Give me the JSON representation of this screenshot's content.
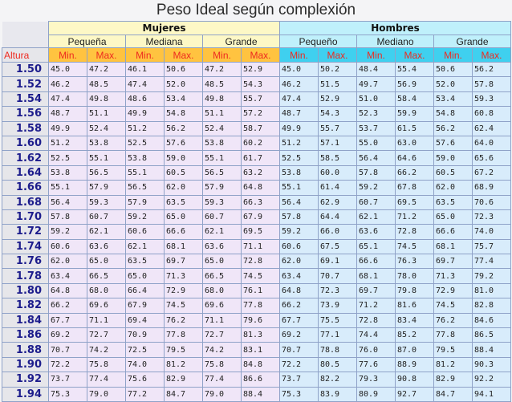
{
  "title": "Peso Ideal según complexión",
  "groups": [
    "Mujeres",
    "Hombres"
  ],
  "sizes": {
    "women": [
      "Pequeña",
      "Mediana",
      "Grande"
    ],
    "men": [
      "Pequeño",
      "Mediano",
      "Grande"
    ]
  },
  "units": {
    "altura": "Altura",
    "min": "Min.",
    "max": "Max."
  },
  "rows": [
    {
      "h": "1.50",
      "v": [
        "45.0",
        "47.2",
        "46.1",
        "50.6",
        "47.2",
        "52.9",
        "45.0",
        "50.2",
        "48.4",
        "55.4",
        "50.6",
        "56.2"
      ]
    },
    {
      "h": "1.52",
      "v": [
        "46.2",
        "48.5",
        "47.4",
        "52.0",
        "48.5",
        "54.3",
        "46.2",
        "51.5",
        "49.7",
        "56.9",
        "52.0",
        "57.8"
      ]
    },
    {
      "h": "1.54",
      "v": [
        "47.4",
        "49.8",
        "48.6",
        "53.4",
        "49.8",
        "55.7",
        "47.4",
        "52.9",
        "51.0",
        "58.4",
        "53.4",
        "59.3"
      ]
    },
    {
      "h": "1.56",
      "v": [
        "48.7",
        "51.1",
        "49.9",
        "54.8",
        "51.1",
        "57.2",
        "48.7",
        "54.3",
        "52.3",
        "59.9",
        "54.8",
        "60.8"
      ]
    },
    {
      "h": "1.58",
      "v": [
        "49.9",
        "52.4",
        "51.2",
        "56.2",
        "52.4",
        "58.7",
        "49.9",
        "55.7",
        "53.7",
        "61.5",
        "56.2",
        "62.4"
      ]
    },
    {
      "h": "1.60",
      "v": [
        "51.2",
        "53.8",
        "52.5",
        "57.6",
        "53.8",
        "60.2",
        "51.2",
        "57.1",
        "55.0",
        "63.0",
        "57.6",
        "64.0"
      ]
    },
    {
      "h": "1.62",
      "v": [
        "52.5",
        "55.1",
        "53.8",
        "59.0",
        "55.1",
        "61.7",
        "52.5",
        "58.5",
        "56.4",
        "64.6",
        "59.0",
        "65.6"
      ]
    },
    {
      "h": "1.64",
      "v": [
        "53.8",
        "56.5",
        "55.1",
        "60.5",
        "56.5",
        "63.2",
        "53.8",
        "60.0",
        "57.8",
        "66.2",
        "60.5",
        "67.2"
      ]
    },
    {
      "h": "1.66",
      "v": [
        "55.1",
        "57.9",
        "56.5",
        "62.0",
        "57.9",
        "64.8",
        "55.1",
        "61.4",
        "59.2",
        "67.8",
        "62.0",
        "68.9"
      ]
    },
    {
      "h": "1.68",
      "v": [
        "56.4",
        "59.3",
        "57.9",
        "63.5",
        "59.3",
        "66.3",
        "56.4",
        "62.9",
        "60.7",
        "69.5",
        "63.5",
        "70.6"
      ]
    },
    {
      "h": "1.70",
      "v": [
        "57.8",
        "60.7",
        "59.2",
        "65.0",
        "60.7",
        "67.9",
        "57.8",
        "64.4",
        "62.1",
        "71.2",
        "65.0",
        "72.3"
      ]
    },
    {
      "h": "1.72",
      "v": [
        "59.2",
        "62.1",
        "60.6",
        "66.6",
        "62.1",
        "69.5",
        "59.2",
        "66.0",
        "63.6",
        "72.8",
        "66.6",
        "74.0"
      ]
    },
    {
      "h": "1.74",
      "v": [
        "60.6",
        "63.6",
        "62.1",
        "68.1",
        "63.6",
        "71.1",
        "60.6",
        "67.5",
        "65.1",
        "74.5",
        "68.1",
        "75.7"
      ]
    },
    {
      "h": "1.76",
      "v": [
        "62.0",
        "65.0",
        "63.5",
        "69.7",
        "65.0",
        "72.8",
        "62.0",
        "69.1",
        "66.6",
        "76.3",
        "69.7",
        "77.4"
      ]
    },
    {
      "h": "1.78",
      "v": [
        "63.4",
        "66.5",
        "65.0",
        "71.3",
        "66.5",
        "74.5",
        "63.4",
        "70.7",
        "68.1",
        "78.0",
        "71.3",
        "79.2"
      ]
    },
    {
      "h": "1.80",
      "v": [
        "64.8",
        "68.0",
        "66.4",
        "72.9",
        "68.0",
        "76.1",
        "64.8",
        "72.3",
        "69.7",
        "79.8",
        "72.9",
        "81.0"
      ]
    },
    {
      "h": "1.82",
      "v": [
        "66.2",
        "69.6",
        "67.9",
        "74.5",
        "69.6",
        "77.8",
        "66.2",
        "73.9",
        "71.2",
        "81.6",
        "74.5",
        "82.8"
      ]
    },
    {
      "h": "1.84",
      "v": [
        "67.7",
        "71.1",
        "69.4",
        "76.2",
        "71.1",
        "79.6",
        "67.7",
        "75.5",
        "72.8",
        "83.4",
        "76.2",
        "84.6"
      ]
    },
    {
      "h": "1.86",
      "v": [
        "69.2",
        "72.7",
        "70.9",
        "77.8",
        "72.7",
        "81.3",
        "69.2",
        "77.1",
        "74.4",
        "85.2",
        "77.8",
        "86.5"
      ]
    },
    {
      "h": "1.88",
      "v": [
        "70.7",
        "74.2",
        "72.5",
        "79.5",
        "74.2",
        "83.1",
        "70.7",
        "78.8",
        "76.0",
        "87.0",
        "79.5",
        "88.4"
      ]
    },
    {
      "h": "1.90",
      "v": [
        "72.2",
        "75.8",
        "74.0",
        "81.2",
        "75.8",
        "84.8",
        "72.2",
        "80.5",
        "77.6",
        "88.9",
        "81.2",
        "90.3"
      ]
    },
    {
      "h": "1.92",
      "v": [
        "73.7",
        "77.4",
        "75.6",
        "82.9",
        "77.4",
        "86.6",
        "73.7",
        "82.2",
        "79.3",
        "90.8",
        "82.9",
        "92.2"
      ]
    },
    {
      "h": "1.94",
      "v": [
        "75.3",
        "79.0",
        "77.2",
        "84.7",
        "79.0",
        "88.4",
        "75.3",
        "83.9",
        "80.9",
        "92.7",
        "84.7",
        "94.1"
      ]
    }
  ]
}
